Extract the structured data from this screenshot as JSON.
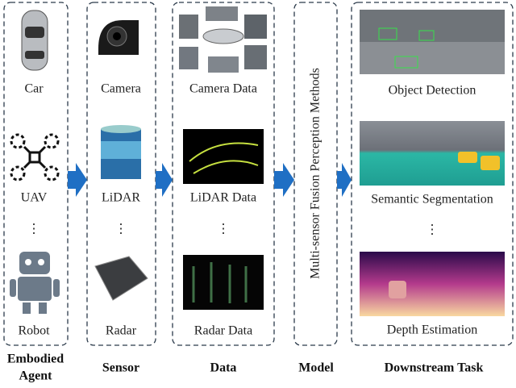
{
  "columns": [
    {
      "heading": [
        "Embodied",
        "Agent"
      ],
      "items": [
        "Car",
        "UAV",
        "⋮",
        "Robot"
      ]
    },
    {
      "heading": [
        "Sensor"
      ],
      "items": [
        "Camera",
        "LiDAR",
        "⋮",
        "Radar"
      ]
    },
    {
      "heading": [
        "Data"
      ],
      "items": [
        "Camera Data",
        "LiDAR Data",
        "⋮",
        "Radar Data"
      ]
    },
    {
      "heading": [
        "Model"
      ],
      "items": [
        "Multi-sensor Fusion Perception Methods"
      ]
    },
    {
      "heading": [
        "Downstream Task"
      ],
      "items": [
        "Object Detection",
        "Semantic Segmentation",
        "⋮",
        "Depth Estimation"
      ]
    }
  ]
}
